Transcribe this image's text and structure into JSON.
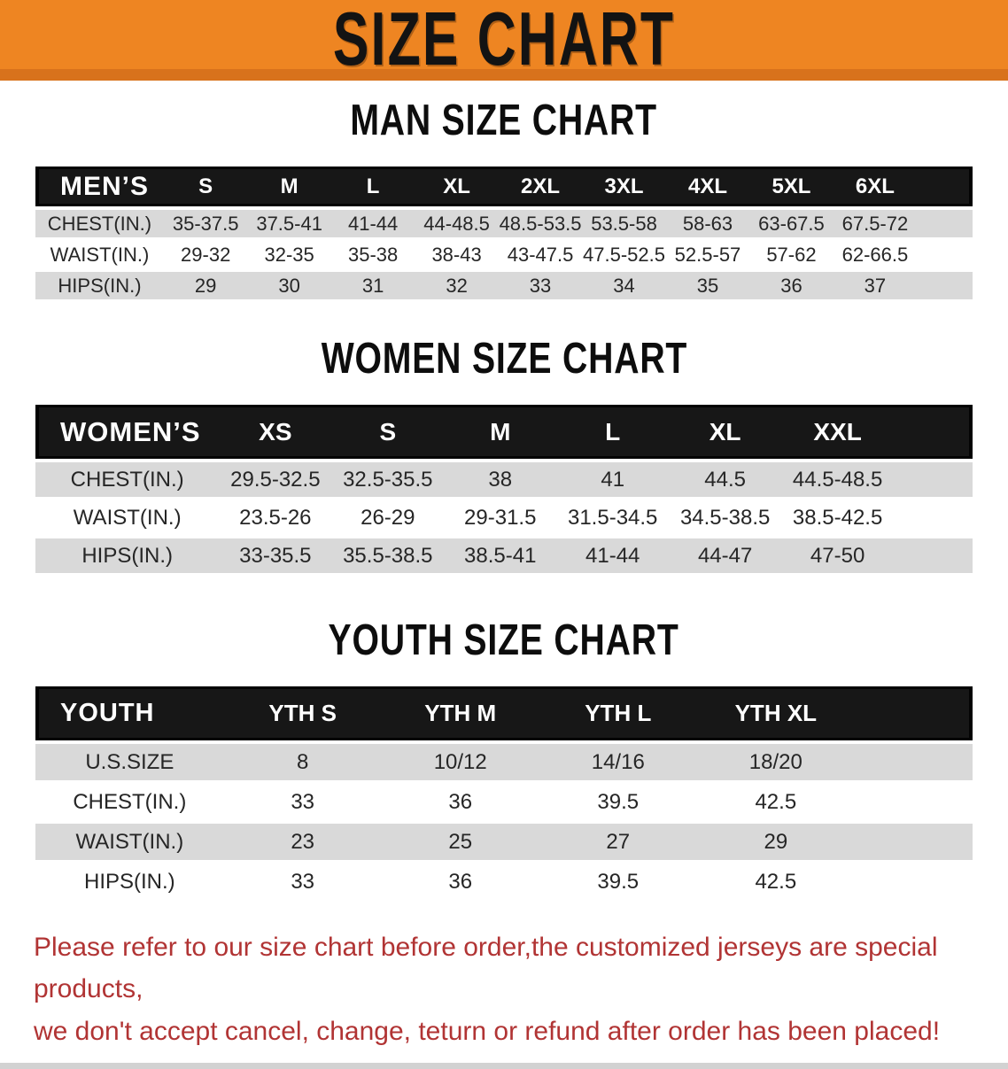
{
  "banner": {
    "title": "SIZE CHART",
    "background_color": "#ee8522",
    "background_dark_color": "#d8721c",
    "text_color": "#131313"
  },
  "sections": {
    "men": {
      "heading": "MAN SIZE CHART"
    },
    "women": {
      "heading": "WOMEN SIZE CHART"
    },
    "youth": {
      "heading": "YOUTH SIZE CHART"
    }
  },
  "tables": {
    "men": {
      "label": "MEN’S",
      "sizes": [
        "S",
        "M",
        "L",
        "XL",
        "2XL",
        "3XL",
        "4XL",
        "5XL",
        "6XL"
      ],
      "rows": [
        {
          "label": "CHEST(IN.)",
          "values": [
            "35-37.5",
            "37.5-41",
            "41-44",
            "44-48.5",
            "48.5-53.5",
            "53.5-58",
            "58-63",
            "63-67.5",
            "67.5-72"
          ]
        },
        {
          "label": "WAIST(IN.)",
          "values": [
            "29-32",
            "32-35",
            "35-38",
            "38-43",
            "43-47.5",
            "47.5-52.5",
            "52.5-57",
            "57-62",
            "62-66.5"
          ]
        },
        {
          "label": "HIPS(IN.)",
          "values": [
            "29",
            "30",
            "31",
            "32",
            "33",
            "34",
            "35",
            "36",
            "37"
          ]
        }
      ]
    },
    "women": {
      "label": "WOMEN’S",
      "sizes": [
        "XS",
        "S",
        "M",
        "L",
        "XL",
        "XXL"
      ],
      "rows": [
        {
          "label": "CHEST(IN.)",
          "values": [
            "29.5-32.5",
            "32.5-35.5",
            "38",
            "41",
            "44.5",
            "44.5-48.5"
          ]
        },
        {
          "label": "WAIST(IN.)",
          "values": [
            "23.5-26",
            "26-29",
            "29-31.5",
            "31.5-34.5",
            "34.5-38.5",
            "38.5-42.5"
          ]
        },
        {
          "label": "HIPS(IN.)",
          "values": [
            "33-35.5",
            "35.5-38.5",
            "38.5-41",
            "41-44",
            "44-47",
            "47-50"
          ]
        }
      ]
    },
    "youth": {
      "label": "YOUTH",
      "sizes": [
        "YTH S",
        "YTH M",
        "YTH L",
        "YTH XL"
      ],
      "rows": [
        {
          "label": "U.S.SIZE",
          "values": [
            "8",
            "10/12",
            "14/16",
            "18/20"
          ]
        },
        {
          "label": "CHEST(IN.)",
          "values": [
            "33",
            "36",
            "39.5",
            "42.5"
          ]
        },
        {
          "label": "WAIST(IN.)",
          "values": [
            "23",
            "25",
            "27",
            "29"
          ]
        },
        {
          "label": "HIPS(IN.)",
          "values": [
            "33",
            "36",
            "39.5",
            "42.5"
          ]
        }
      ]
    }
  },
  "footer": {
    "line1": "Please refer to our size chart before order,the customized jerseys are special products,",
    "line2": "we don't accept cancel, change, teturn or refund after order has been placed!",
    "text_color": "#b13434"
  },
  "row_stripe_color": "#d9d9d9",
  "header_bar_color": "#171717"
}
